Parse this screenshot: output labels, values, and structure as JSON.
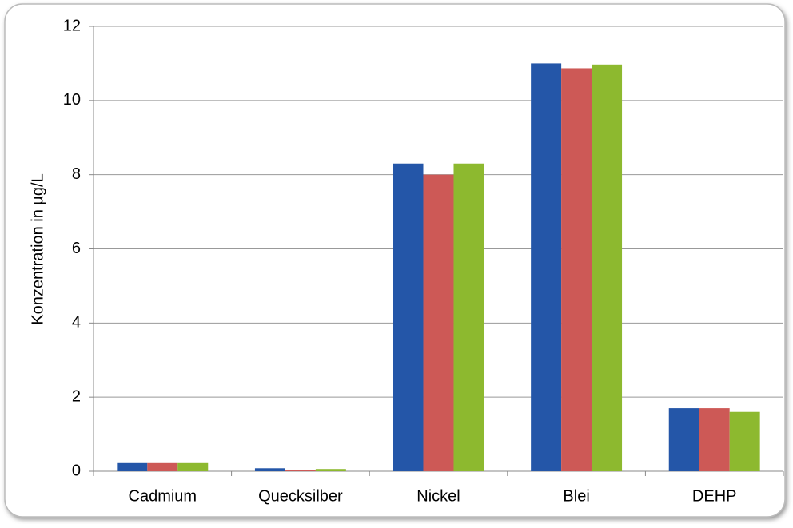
{
  "chart_data": {
    "type": "bar",
    "ylabel": "Konzentration in µg/L",
    "categories": [
      "Cadmium",
      "Quecksilber",
      "Nickel",
      "Blei",
      "DEHP"
    ],
    "series": [
      {
        "color": "#2456a8",
        "values": [
          0.22,
          0.08,
          8.3,
          11.0,
          1.7
        ]
      },
      {
        "color": "#cd5956",
        "values": [
          0.22,
          0.04,
          8.0,
          10.87,
          1.7
        ]
      },
      {
        "color": "#8db92f",
        "values": [
          0.22,
          0.06,
          8.3,
          10.97,
          1.6
        ]
      }
    ],
    "ylim": [
      0,
      12
    ],
    "yticks": [
      0,
      2,
      4,
      6,
      8,
      10,
      12
    ],
    "grid": true
  }
}
